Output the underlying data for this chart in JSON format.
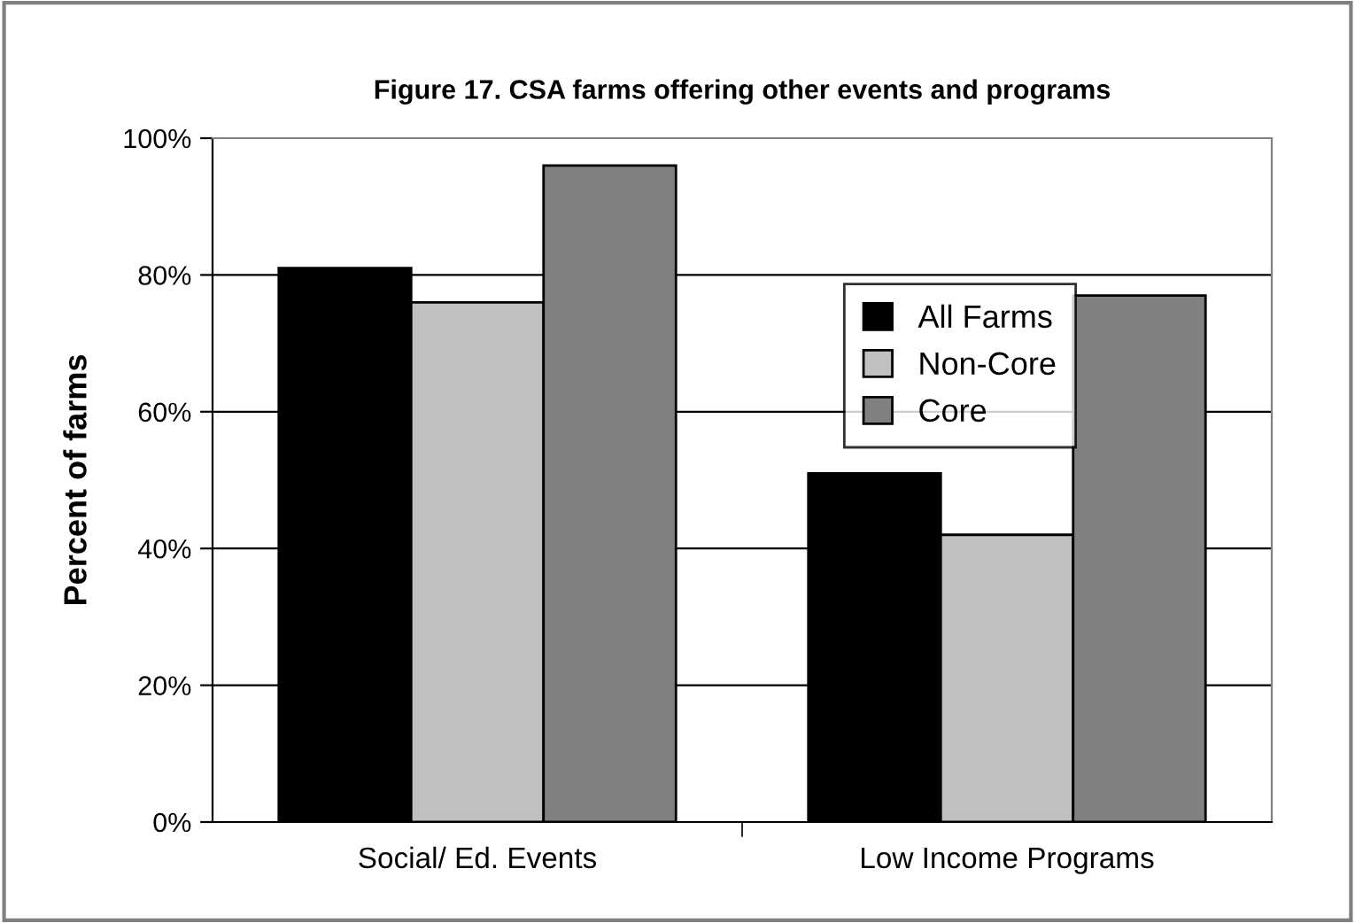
{
  "chart_data": {
    "type": "bar",
    "title": "Figure 17. CSA farms offering other events and programs",
    "ylabel": "Percent of farms",
    "categories": [
      "Social/ Ed. Events",
      "Low Income Programs"
    ],
    "series": [
      {
        "name": "All Farms",
        "color": "#000000",
        "values": [
          81,
          51
        ]
      },
      {
        "name": "Non-Core",
        "color": "#c0c0c0",
        "values": [
          76,
          42
        ]
      },
      {
        "name": "Core",
        "color": "#808080",
        "values": [
          96,
          77
        ]
      }
    ],
    "ylim": [
      0,
      100
    ],
    "yticks": [
      {
        "value": 0,
        "label": "0%"
      },
      {
        "value": 20,
        "label": "20%"
      },
      {
        "value": 40,
        "label": "40%"
      },
      {
        "value": 60,
        "label": "60%"
      },
      {
        "value": 80,
        "label": "80%"
      },
      {
        "value": 100,
        "label": "100%"
      }
    ],
    "grid": "y",
    "legend": "top right"
  }
}
